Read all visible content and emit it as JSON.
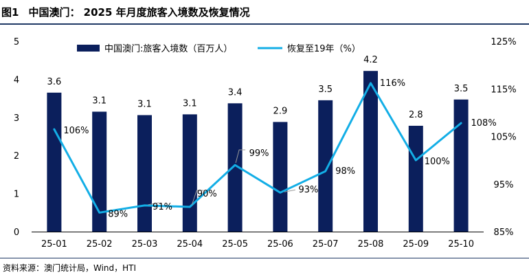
{
  "figure": {
    "label": "图1",
    "title": "中国澳门： 2025 年月度旅客入境数及恢复情况",
    "source": "资料来源：澳门统计局，Wind，HTI"
  },
  "colors": {
    "bar": "#0b1f5c",
    "line": "#13aee6",
    "leader": "#9a9a9a"
  },
  "chart_data": {
    "type": "bar",
    "categories": [
      "25-01",
      "25-02",
      "25-03",
      "25-04",
      "25-05",
      "25-06",
      "25-07",
      "25-08",
      "25-09",
      "25-10"
    ],
    "series": [
      {
        "name": "中国澳门:旅客入境数（百万人）",
        "type": "bar",
        "axis": "left",
        "values": [
          3.6,
          3.1,
          3.1,
          3.1,
          3.4,
          2.9,
          3.5,
          4.2,
          2.8,
          3.5
        ],
        "bar_values_plotted": [
          3.65,
          3.15,
          3.06,
          3.08,
          3.37,
          2.88,
          3.45,
          4.22,
          2.78,
          3.47
        ],
        "labels": [
          "3.6",
          "3.1",
          "3.1",
          "3.1",
          "3.4",
          "2.9",
          "3.5",
          "4.2",
          "2.8",
          "3.5"
        ]
      },
      {
        "name": "恢复至19年（%）",
        "type": "line",
        "axis": "right",
        "values": [
          106,
          89,
          91,
          90,
          99,
          93,
          98,
          116,
          100,
          108
        ],
        "line_values_plotted": [
          106.5,
          89.0,
          90.5,
          90.2,
          99.0,
          93.2,
          97.7,
          116.2,
          100.0,
          107.8
        ],
        "labels": [
          "106%",
          "89%",
          "91%",
          "90%",
          "99%",
          "93%",
          "98%",
          "116%",
          "100%",
          "108%"
        ]
      }
    ],
    "y_left": {
      "min": 0,
      "max": 5,
      "ticks": [
        "0",
        "1",
        "2",
        "3",
        "4",
        "5"
      ]
    },
    "y_right": {
      "min": 85,
      "max": 125,
      "ticks": [
        "85%",
        "95%",
        "105%",
        "115%",
        "125%"
      ]
    },
    "grid": false,
    "legend_position": "top"
  }
}
